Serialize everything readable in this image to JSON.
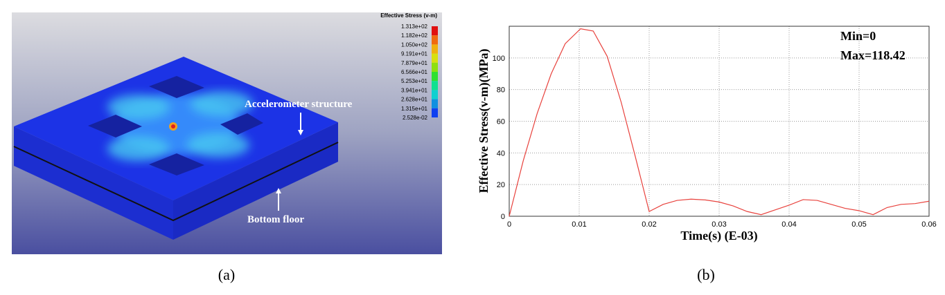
{
  "panel_a": {
    "legend": {
      "title": "Effective Stress (v-m)",
      "labels": [
        "1.313e+02",
        "1.182e+02",
        "1.050e+02",
        "9.191e+01",
        "7.879e+01",
        "6.566e+01",
        "5.253e+01",
        "3.941e+01",
        "2.628e+01",
        "1.315e+01",
        "2.528e-02"
      ],
      "colors": [
        "#e01010",
        "#f06a10",
        "#f0b010",
        "#d8e010",
        "#8ee010",
        "#30e030",
        "#10e090",
        "#10d0d0",
        "#1090e0",
        "#1040f0"
      ]
    },
    "annotations": [
      "Accelerometer structure",
      "Bottom floor"
    ]
  },
  "captions": [
    "(a)",
    "(b)"
  ],
  "chart_data": {
    "type": "line",
    "x": [
      0,
      0.002,
      0.004,
      0.006,
      0.008,
      0.0102,
      0.012,
      0.014,
      0.016,
      0.018,
      0.02,
      0.022,
      0.024,
      0.026,
      0.028,
      0.03,
      0.032,
      0.034,
      0.036,
      0.038,
      0.04,
      0.042,
      0.044,
      0.046,
      0.048,
      0.05,
      0.052,
      0.054,
      0.056,
      0.058,
      0.06
    ],
    "values": [
      0,
      35,
      65,
      90,
      109,
      118.42,
      117,
      101,
      72,
      38,
      3,
      7.5,
      10,
      10.8,
      10.3,
      9,
      6.5,
      3,
      1,
      4,
      7,
      10.5,
      10,
      7.5,
      5,
      3.5,
      1,
      5.5,
      7.5,
      8,
      9.5
    ],
    "color": "#e8413c",
    "x_label": "Time(s) (E-03)",
    "y_label": "Effective Stress(v-m)(MPa)",
    "annotations": [
      "Min=0",
      "Max=118.42"
    ],
    "xlim": [
      0,
      0.06
    ],
    "xticks": [
      0,
      0.01,
      0.02,
      0.03,
      0.04,
      0.05,
      0.06
    ],
    "ylim": [
      0,
      120
    ],
    "yticks": [
      0,
      20,
      40,
      60,
      80,
      100
    ],
    "grid": true
  }
}
